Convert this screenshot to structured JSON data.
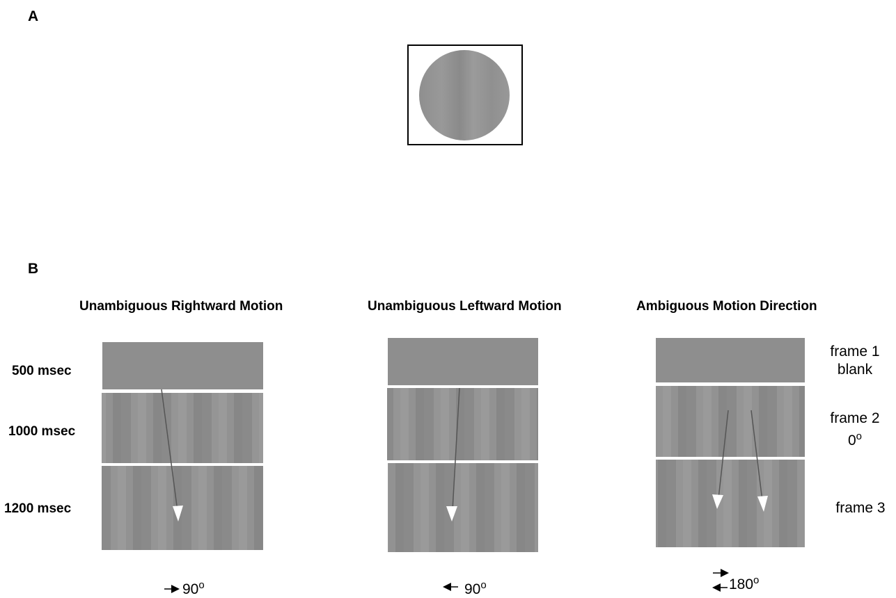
{
  "panel_a": {
    "letter": "A"
  },
  "panel_b": {
    "letter": "B",
    "columns": [
      {
        "title": "Unambiguous Rightward Motion",
        "angle": "90",
        "angle_sup": "o"
      },
      {
        "title": "Unambiguous Leftward Motion",
        "angle": "90",
        "angle_sup": "o"
      },
      {
        "title": "Ambiguous Motion Direction",
        "angle": "180",
        "angle_sup": "o"
      }
    ],
    "durations": [
      "500 msec",
      "1000 msec",
      "1200 msec"
    ],
    "frames": [
      {
        "line1": "frame 1",
        "line2": "blank"
      },
      {
        "line1": "frame 2",
        "line2": "0",
        "line2_sup": "o"
      },
      {
        "line1": "frame 3"
      }
    ]
  },
  "colors": {
    "background": "#ffffff",
    "grating_base": "#8e8e8e",
    "separator": "#ffffff",
    "arrow_line": "#555555",
    "arrow_head": "#ffffff"
  }
}
